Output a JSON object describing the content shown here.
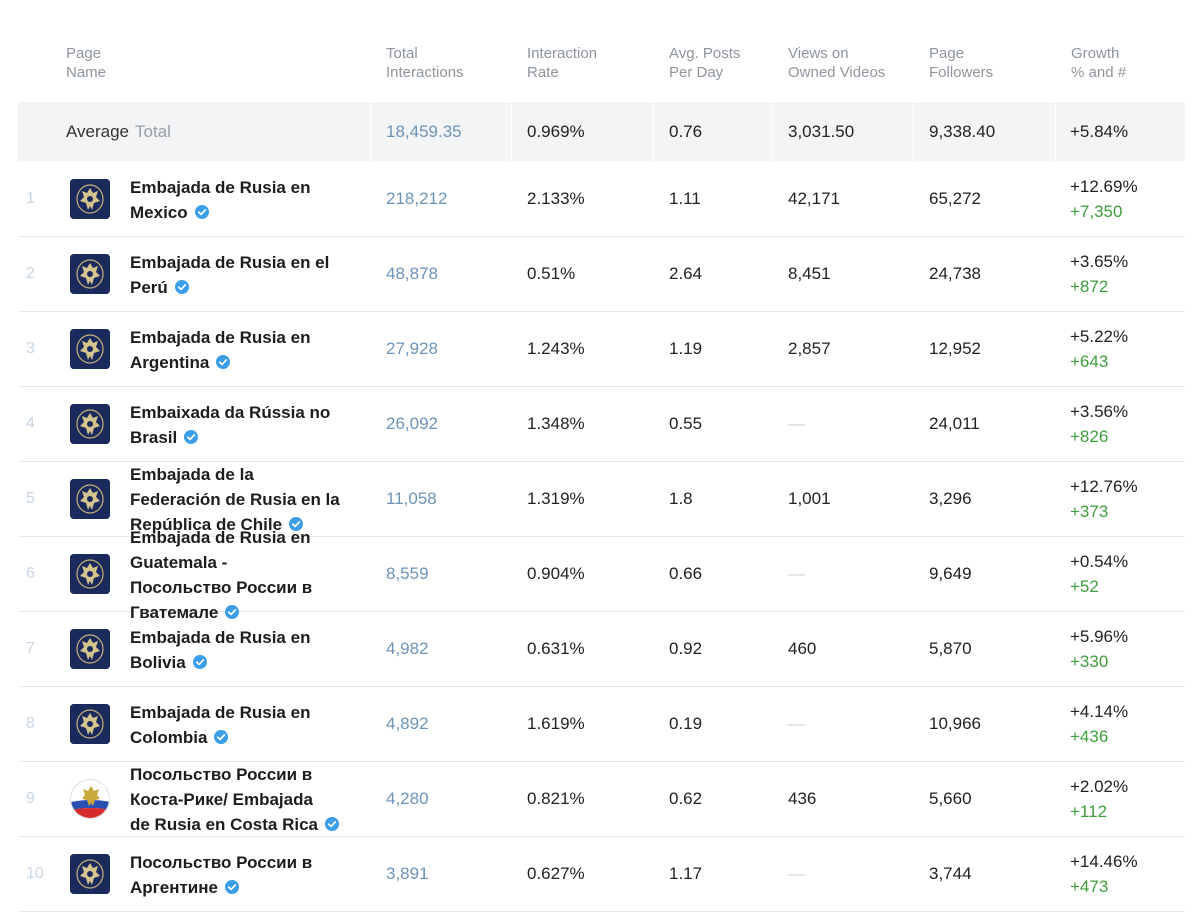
{
  "headers": {
    "page_name": [
      "Page",
      "Name"
    ],
    "total_interactions": [
      "Total",
      "Interactions"
    ],
    "interaction_rate": [
      "Interaction",
      "Rate"
    ],
    "avg_posts": [
      "Avg. Posts",
      "Per Day"
    ],
    "views": [
      "Views on",
      "Owned Videos"
    ],
    "followers": [
      "Page",
      "Followers"
    ],
    "growth": [
      "Growth",
      "% and #"
    ]
  },
  "average": {
    "label": "Average",
    "total_label": "Total",
    "total_interactions": "18,459.35",
    "interaction_rate": "0.969%",
    "avg_posts": "0.76",
    "views": "3,031.50",
    "followers": "9,338.40",
    "growth_pct": "+5.84%"
  },
  "rows": [
    {
      "index": "1",
      "name_lines": [
        "Embajada de Rusia en",
        "Mexico"
      ],
      "avatar": "crest-icon",
      "total_interactions": "218,212",
      "interaction_rate": "2.133%",
      "avg_posts": "1.11",
      "views": "42,171",
      "followers": "65,272",
      "growth_pct": "+12.69%",
      "growth_num": "+7,350"
    },
    {
      "index": "2",
      "name_lines": [
        "Embajada de Rusia en el",
        "Perú"
      ],
      "avatar": "crest-icon",
      "total_interactions": "48,878",
      "interaction_rate": "0.51%",
      "avg_posts": "2.64",
      "views": "8,451",
      "followers": "24,738",
      "growth_pct": "+3.65%",
      "growth_num": "+872"
    },
    {
      "index": "3",
      "name_lines": [
        "Embajada de Rusia en",
        "Argentina"
      ],
      "avatar": "crest-icon",
      "total_interactions": "27,928",
      "interaction_rate": "1.243%",
      "avg_posts": "1.19",
      "views": "2,857",
      "followers": "12,952",
      "growth_pct": "+5.22%",
      "growth_num": "+643"
    },
    {
      "index": "4",
      "name_lines": [
        "Embaixada da Rússia no",
        "Brasil"
      ],
      "avatar": "crest-icon",
      "total_interactions": "26,092",
      "interaction_rate": "1.348%",
      "avg_posts": "0.55",
      "views": "—",
      "followers": "24,011",
      "growth_pct": "+3.56%",
      "growth_num": "+826"
    },
    {
      "index": "5",
      "name_lines": [
        "Embajada de la",
        "Federación de Rusia en la",
        "República de Chile"
      ],
      "avatar": "crest-icon",
      "total_interactions": "11,058",
      "interaction_rate": "1.319%",
      "avg_posts": "1.8",
      "views": "1,001",
      "followers": "3,296",
      "growth_pct": "+12.76%",
      "growth_num": "+373"
    },
    {
      "index": "6",
      "name_lines": [
        "Embajada de Rusia en",
        "Guatemala -",
        "Посольство России в",
        "Гватемале"
      ],
      "avatar": "crest-icon",
      "total_interactions": "8,559",
      "interaction_rate": "0.904%",
      "avg_posts": "0.66",
      "views": "—",
      "followers": "9,649",
      "growth_pct": "+0.54%",
      "growth_num": "+52"
    },
    {
      "index": "7",
      "name_lines": [
        "Embajada de Rusia en",
        "Bolivia"
      ],
      "avatar": "crest-icon",
      "total_interactions": "4,982",
      "interaction_rate": "0.631%",
      "avg_posts": "0.92",
      "views": "460",
      "followers": "5,870",
      "growth_pct": "+5.96%",
      "growth_num": "+330"
    },
    {
      "index": "8",
      "name_lines": [
        "Embajada de Rusia en",
        "Colombia"
      ],
      "avatar": "crest-icon",
      "total_interactions": "4,892",
      "interaction_rate": "1.619%",
      "avg_posts": "0.19",
      "views": "—",
      "followers": "10,966",
      "growth_pct": "+4.14%",
      "growth_num": "+436"
    },
    {
      "index": "9",
      "name_lines": [
        "Посольство России в",
        "Коста-Рике/ Embajada",
        "de Rusia en Costa Rica"
      ],
      "avatar": "flag-crest-icon",
      "total_interactions": "4,280",
      "interaction_rate": "0.821%",
      "avg_posts": "0.62",
      "views": "436",
      "followers": "5,660",
      "growth_pct": "+2.02%",
      "growth_num": "+112"
    },
    {
      "index": "10",
      "name_lines": [
        "Посольство России в",
        "Аргентине"
      ],
      "avatar": "crest-icon",
      "total_interactions": "3,891",
      "interaction_rate": "0.627%",
      "avg_posts": "1.17",
      "views": "—",
      "followers": "3,744",
      "growth_pct": "+14.46%",
      "growth_num": "+473"
    }
  ],
  "colors": {
    "link_blue": "#6d93b9",
    "growth_green": "#3f9e3f",
    "header_gray": "#8e959d",
    "avatar_navy": "#1b2a5c",
    "verified_blue": "#3b9ee8"
  }
}
